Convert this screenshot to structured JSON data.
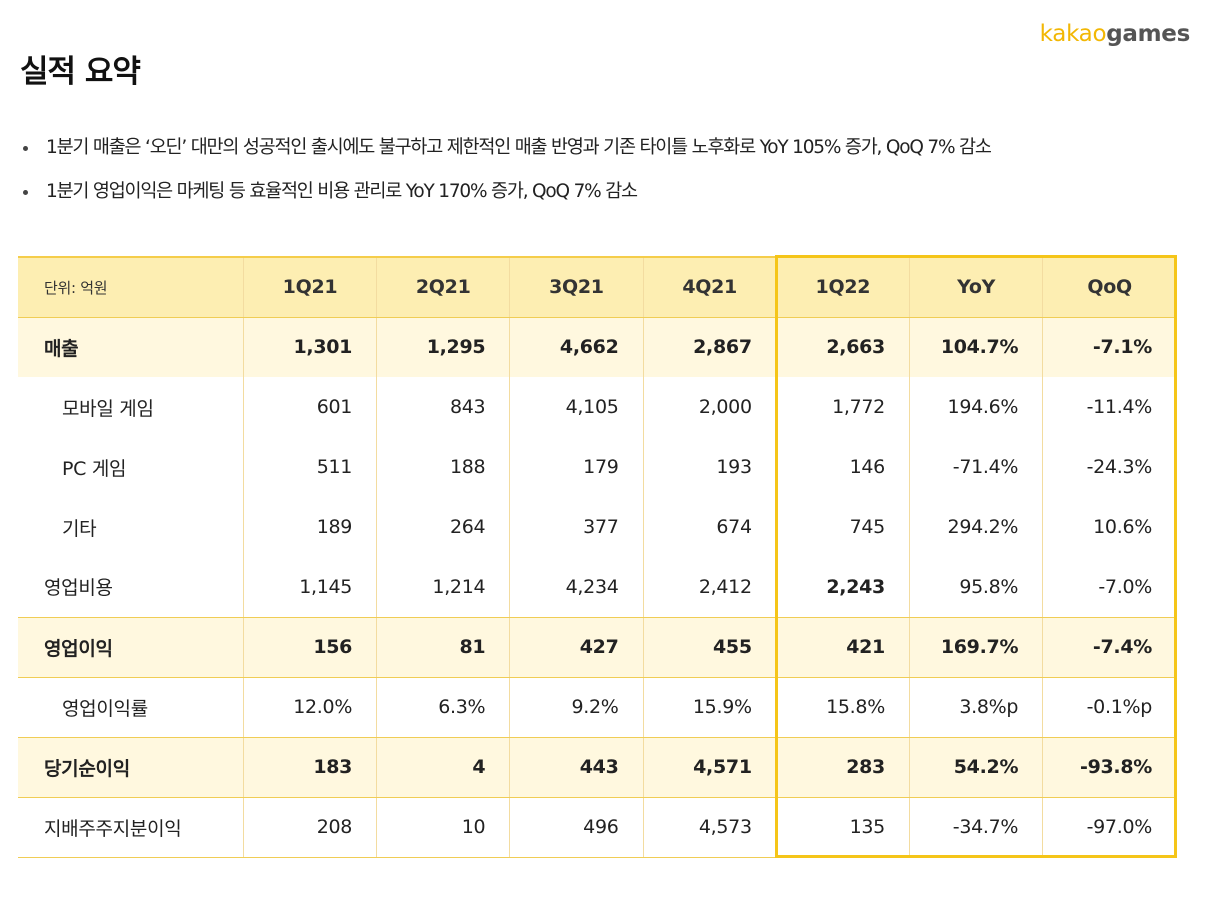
{
  "logo": {
    "part1": "kakao",
    "part2": "games"
  },
  "title": "실적 요약",
  "bullets": [
    "1분기 매출은 ‘오딘’ 대만의 성공적인 출시에도 불구하고 제한적인 매출 반영과 기존 타이틀 노후화로  YoY 105% 증가, QoQ 7% 감소",
    "1분기 영업이익은 마케팅 등 효율적인 비용 관리로 YoY 170% 증가, QoQ 7% 감소"
  ],
  "table": {
    "unit_label": "단위: 억원",
    "columns": [
      "1Q21",
      "2Q21",
      "3Q21",
      "4Q21",
      "1Q22",
      "YoY",
      "QoQ"
    ],
    "rows": [
      {
        "label": "매출",
        "values": [
          "1,301",
          "1,295",
          "4,662",
          "2,867",
          "2,663",
          "104.7%",
          "-7.1%"
        ]
      },
      {
        "label": "모바일 게임",
        "values": [
          "601",
          "843",
          "4,105",
          "2,000",
          "1,772",
          "194.6%",
          "-11.4%"
        ]
      },
      {
        "label": "PC 게임",
        "values": [
          "511",
          "188",
          "179",
          "193",
          "146",
          "-71.4%",
          "-24.3%"
        ]
      },
      {
        "label": "기타",
        "values": [
          "189",
          "264",
          "377",
          "674",
          "745",
          "294.2%",
          "10.6%"
        ]
      },
      {
        "label": "영업비용",
        "values": [
          "1,145",
          "1,214",
          "4,234",
          "2,412",
          "2,243",
          "95.8%",
          "-7.0%"
        ]
      },
      {
        "label": "영업이익",
        "values": [
          "156",
          "81",
          "427",
          "455",
          "421",
          "169.7%",
          "-7.4%"
        ]
      },
      {
        "label": "영업이익률",
        "values": [
          "12.0%",
          "6.3%",
          "9.2%",
          "15.9%",
          "15.8%",
          "3.8%p",
          "-0.1%p"
        ]
      },
      {
        "label": "당기순이익",
        "values": [
          "183",
          "4",
          "443",
          "4,571",
          "283",
          "54.2%",
          "-93.8%"
        ]
      },
      {
        "label": "지배주주지분이익",
        "values": [
          "208",
          "10",
          "496",
          "4,573",
          "135",
          "-34.7%",
          "-97.0%"
        ]
      }
    ]
  },
  "colors": {
    "accent": "#f5c518",
    "header_bg": "#fdeeb2",
    "row_highlight": "#fff8df"
  }
}
